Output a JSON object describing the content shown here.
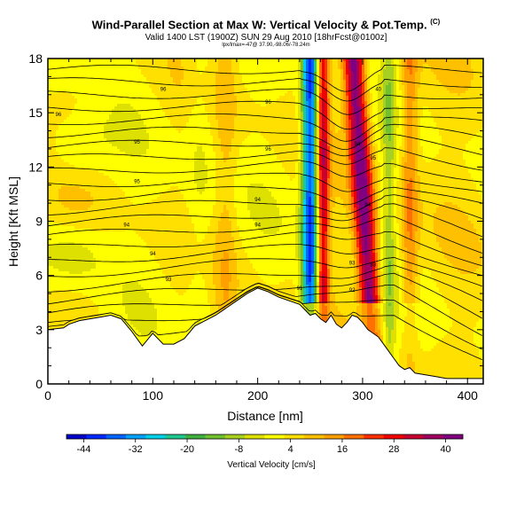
{
  "chart_data": {
    "type": "heatmap",
    "title": "Wind-Parallel Section at Max W: Vertical Velocity & Pot.Temp.",
    "title_mark": "(C)",
    "subtitle": "Valid 1400 LST (1900Z) SUN 29 Aug 2010 [18hrFcst@0100z]",
    "subtitle2": "lpx/lmax=-47@ 37.90,-98.06/-78.24m",
    "xlabel": "Distance [nm]",
    "ylabel": "Height [Kft MSL]",
    "xlim": [
      0,
      415
    ],
    "ylim": [
      0,
      18
    ],
    "x_ticks": [
      "0",
      "100",
      "200",
      "300",
      "400"
    ],
    "y_ticks": [
      "0",
      "3",
      "6",
      "9",
      "12",
      "15",
      "18"
    ],
    "grid": false,
    "colorbar": {
      "label": "Vertical Velocity [cm/s]",
      "ticks": [
        "-44",
        "-32",
        "-20",
        "-8",
        "4",
        "16",
        "28",
        "40"
      ],
      "range": [
        -48,
        44
      ],
      "colors": [
        "#0000c8",
        "#0028ff",
        "#0064ff",
        "#00a0ff",
        "#00d0e8",
        "#20c890",
        "#40b040",
        "#70c030",
        "#a8d020",
        "#dde000",
        "#ffff00",
        "#ffe000",
        "#ffc000",
        "#ffa000",
        "#ff7000",
        "#ff3000",
        "#f00000",
        "#c80030",
        "#a00060",
        "#800080"
      ]
    },
    "terrain": {
      "x": [
        0,
        15,
        20,
        30,
        40,
        50,
        60,
        70,
        80,
        90,
        100,
        110,
        120,
        130,
        140,
        150,
        160,
        170,
        180,
        190,
        200,
        210,
        220,
        230,
        240,
        245,
        250,
        255,
        260,
        265,
        270,
        275,
        280,
        285,
        290,
        295,
        300,
        305,
        310,
        315,
        320,
        325,
        330,
        335,
        340,
        345,
        350,
        360,
        370,
        380,
        390,
        400,
        415
      ],
      "y": [
        3.0,
        3.1,
        3.3,
        3.5,
        3.6,
        3.7,
        3.8,
        3.6,
        2.9,
        2.1,
        2.8,
        2.2,
        2.2,
        2.5,
        3.2,
        3.5,
        3.8,
        4.2,
        4.6,
        5.0,
        5.3,
        5.1,
        4.8,
        4.6,
        4.4,
        4.1,
        3.8,
        3.9,
        3.6,
        3.4,
        3.8,
        3.3,
        3.1,
        3.4,
        3.8,
        3.7,
        3.4,
        3.0,
        2.8,
        2.6,
        2.2,
        1.8,
        1.4,
        1.0,
        0.8,
        0.9,
        0.6,
        0.5,
        0.4,
        0.3,
        0.3,
        0.3,
        0.3
      ]
    },
    "field_features": [
      {
        "name": "downdraft core",
        "x": 250,
        "width": 8,
        "min": -44
      },
      {
        "name": "updraft core",
        "x": 262,
        "width": 6,
        "max": 30
      },
      {
        "name": "main updraft",
        "x": 302,
        "width": 10,
        "max": 40
      },
      {
        "name": "secondary updraft",
        "x": 345,
        "width": 8,
        "max": 14
      }
    ],
    "isentropes": {
      "count": 22,
      "top_height": 17.4,
      "spacing": 0.62,
      "labels": [
        {
          "text": "96",
          "x": 10,
          "y": 14.8
        },
        {
          "text": "96",
          "x": 110,
          "y": 16.2
        },
        {
          "text": "95",
          "x": 85,
          "y": 13.3
        },
        {
          "text": "96",
          "x": 210,
          "y": 15.5
        },
        {
          "text": "95",
          "x": 85,
          "y": 11.1
        },
        {
          "text": "96",
          "x": 210,
          "y": 12.9
        },
        {
          "text": "94",
          "x": 75,
          "y": 8.7
        },
        {
          "text": "94",
          "x": 200,
          "y": 10.1
        },
        {
          "text": "94",
          "x": 200,
          "y": 8.7
        },
        {
          "text": "94",
          "x": 100,
          "y": 7.1
        },
        {
          "text": "93",
          "x": 115,
          "y": 5.7
        },
        {
          "text": "40",
          "x": 315,
          "y": 16.2
        },
        {
          "text": "94",
          "x": 295,
          "y": 13.2
        },
        {
          "text": "95",
          "x": 310,
          "y": 12.4
        },
        {
          "text": "94",
          "x": 305,
          "y": 9.8
        },
        {
          "text": "93",
          "x": 290,
          "y": 6.6
        },
        {
          "text": "93",
          "x": 310,
          "y": 6.5
        },
        {
          "text": "92",
          "x": 290,
          "y": 5.1
        },
        {
          "text": "91",
          "x": 240,
          "y": 5.2
        }
      ]
    }
  }
}
